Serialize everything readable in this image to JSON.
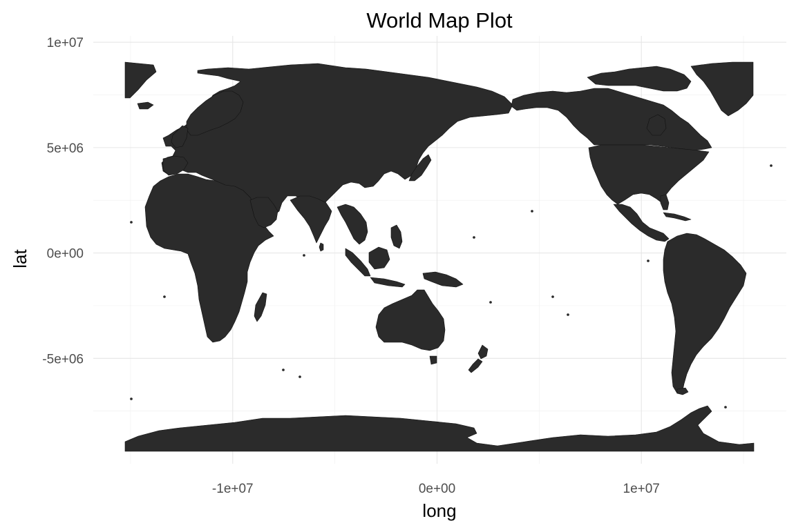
{
  "chart_data": {
    "type": "map",
    "title": "World Map Plot",
    "xlabel": "long",
    "ylabel": "lat",
    "xlim": [
      -17500000,
      17500000
    ],
    "ylim": [
      -10000000,
      10300000
    ],
    "x_ticks": [
      {
        "value": -10000000,
        "label": "-1e+07"
      },
      {
        "value": 0,
        "label": "0e+00"
      },
      {
        "value": 10000000,
        "label": "1e+07"
      }
    ],
    "y_ticks": [
      {
        "value": 10000000,
        "label": "1e+07"
      },
      {
        "value": 5000000,
        "label": "5e+06"
      },
      {
        "value": 0,
        "label": "0e+00"
      },
      {
        "value": -5000000,
        "label": "-5e+06"
      }
    ],
    "x_minor_ticks": [
      -15000000,
      -5000000,
      5000000,
      15000000
    ],
    "y_minor_ticks": [
      7500000,
      2500000,
      -2500000,
      -7500000
    ],
    "grid": true,
    "fill_color": "#2b2b2b",
    "border_color": "#111111",
    "background_color": "#ffffff",
    "grid_color": "#e6e6e6"
  }
}
